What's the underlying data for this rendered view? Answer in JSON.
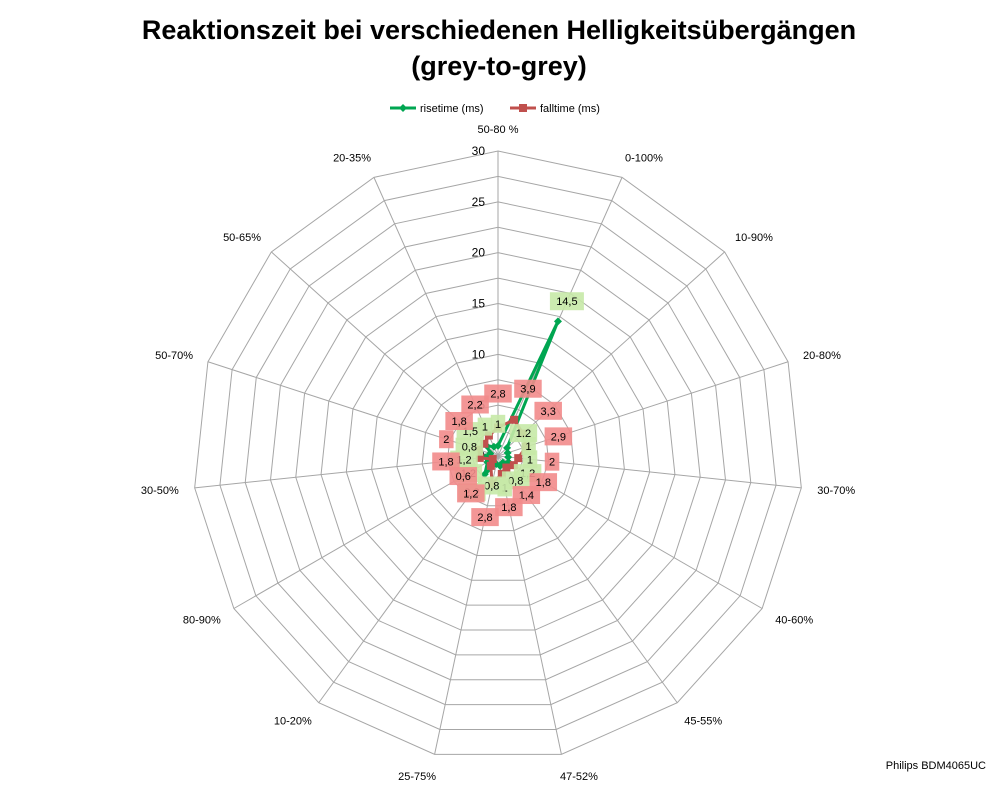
{
  "chart_data": {
    "type": "radar",
    "title": "Reaktionszeit bei verschiedenen Helligkeitsübergängen",
    "subtitle": "(grey-to-grey)",
    "categories": [
      "50-80 %",
      "0-100%",
      "10-90%",
      "20-80%",
      "30-70%",
      "40-60%",
      "45-55%",
      "47-52%",
      "25-75%",
      "10-20%",
      "80-90%",
      "30-50%",
      "50-70%",
      "50-65%",
      "20-35%"
    ],
    "rlim": [
      0,
      30
    ],
    "rticks": [
      0,
      5,
      10,
      15,
      20,
      25,
      30
    ],
    "grid": true,
    "legend_position": "top",
    "series": [
      {
        "name": "risetime (ms)",
        "color": "#00a651",
        "label_bg": "#c6e9a7",
        "values": [
          1,
          14.5,
          1.2,
          1,
          1,
          1.2,
          0.8,
          1,
          0.8,
          2.2,
          1.2,
          1.2,
          0.8,
          1.5,
          1
        ],
        "labels": [
          "1",
          "14,5",
          "1,2",
          "1",
          "1",
          "1,2",
          "0,8",
          "1",
          "0,8",
          "2,2",
          "1,2",
          "1,2",
          "0,8",
          "1,5",
          "1"
        ]
      },
      {
        "name": "falltime (ms)",
        "color": "#c0504d",
        "label_bg": "#f28b8b",
        "values": [
          2.8,
          3.9,
          3.3,
          2.9,
          2,
          1.8,
          1.4,
          1.8,
          2.8,
          1.2,
          0.6,
          1.8,
          2,
          1.8,
          2.2
        ],
        "labels": [
          "2,8",
          "3,9",
          "3,3",
          "2,9",
          "2",
          "1,8",
          "1,4",
          "1,8",
          "2,8",
          "1,2",
          "0,6",
          "1,8",
          "2",
          "1,8",
          "2,2"
        ]
      }
    ]
  },
  "footnote": "Philips BDM4065UC"
}
